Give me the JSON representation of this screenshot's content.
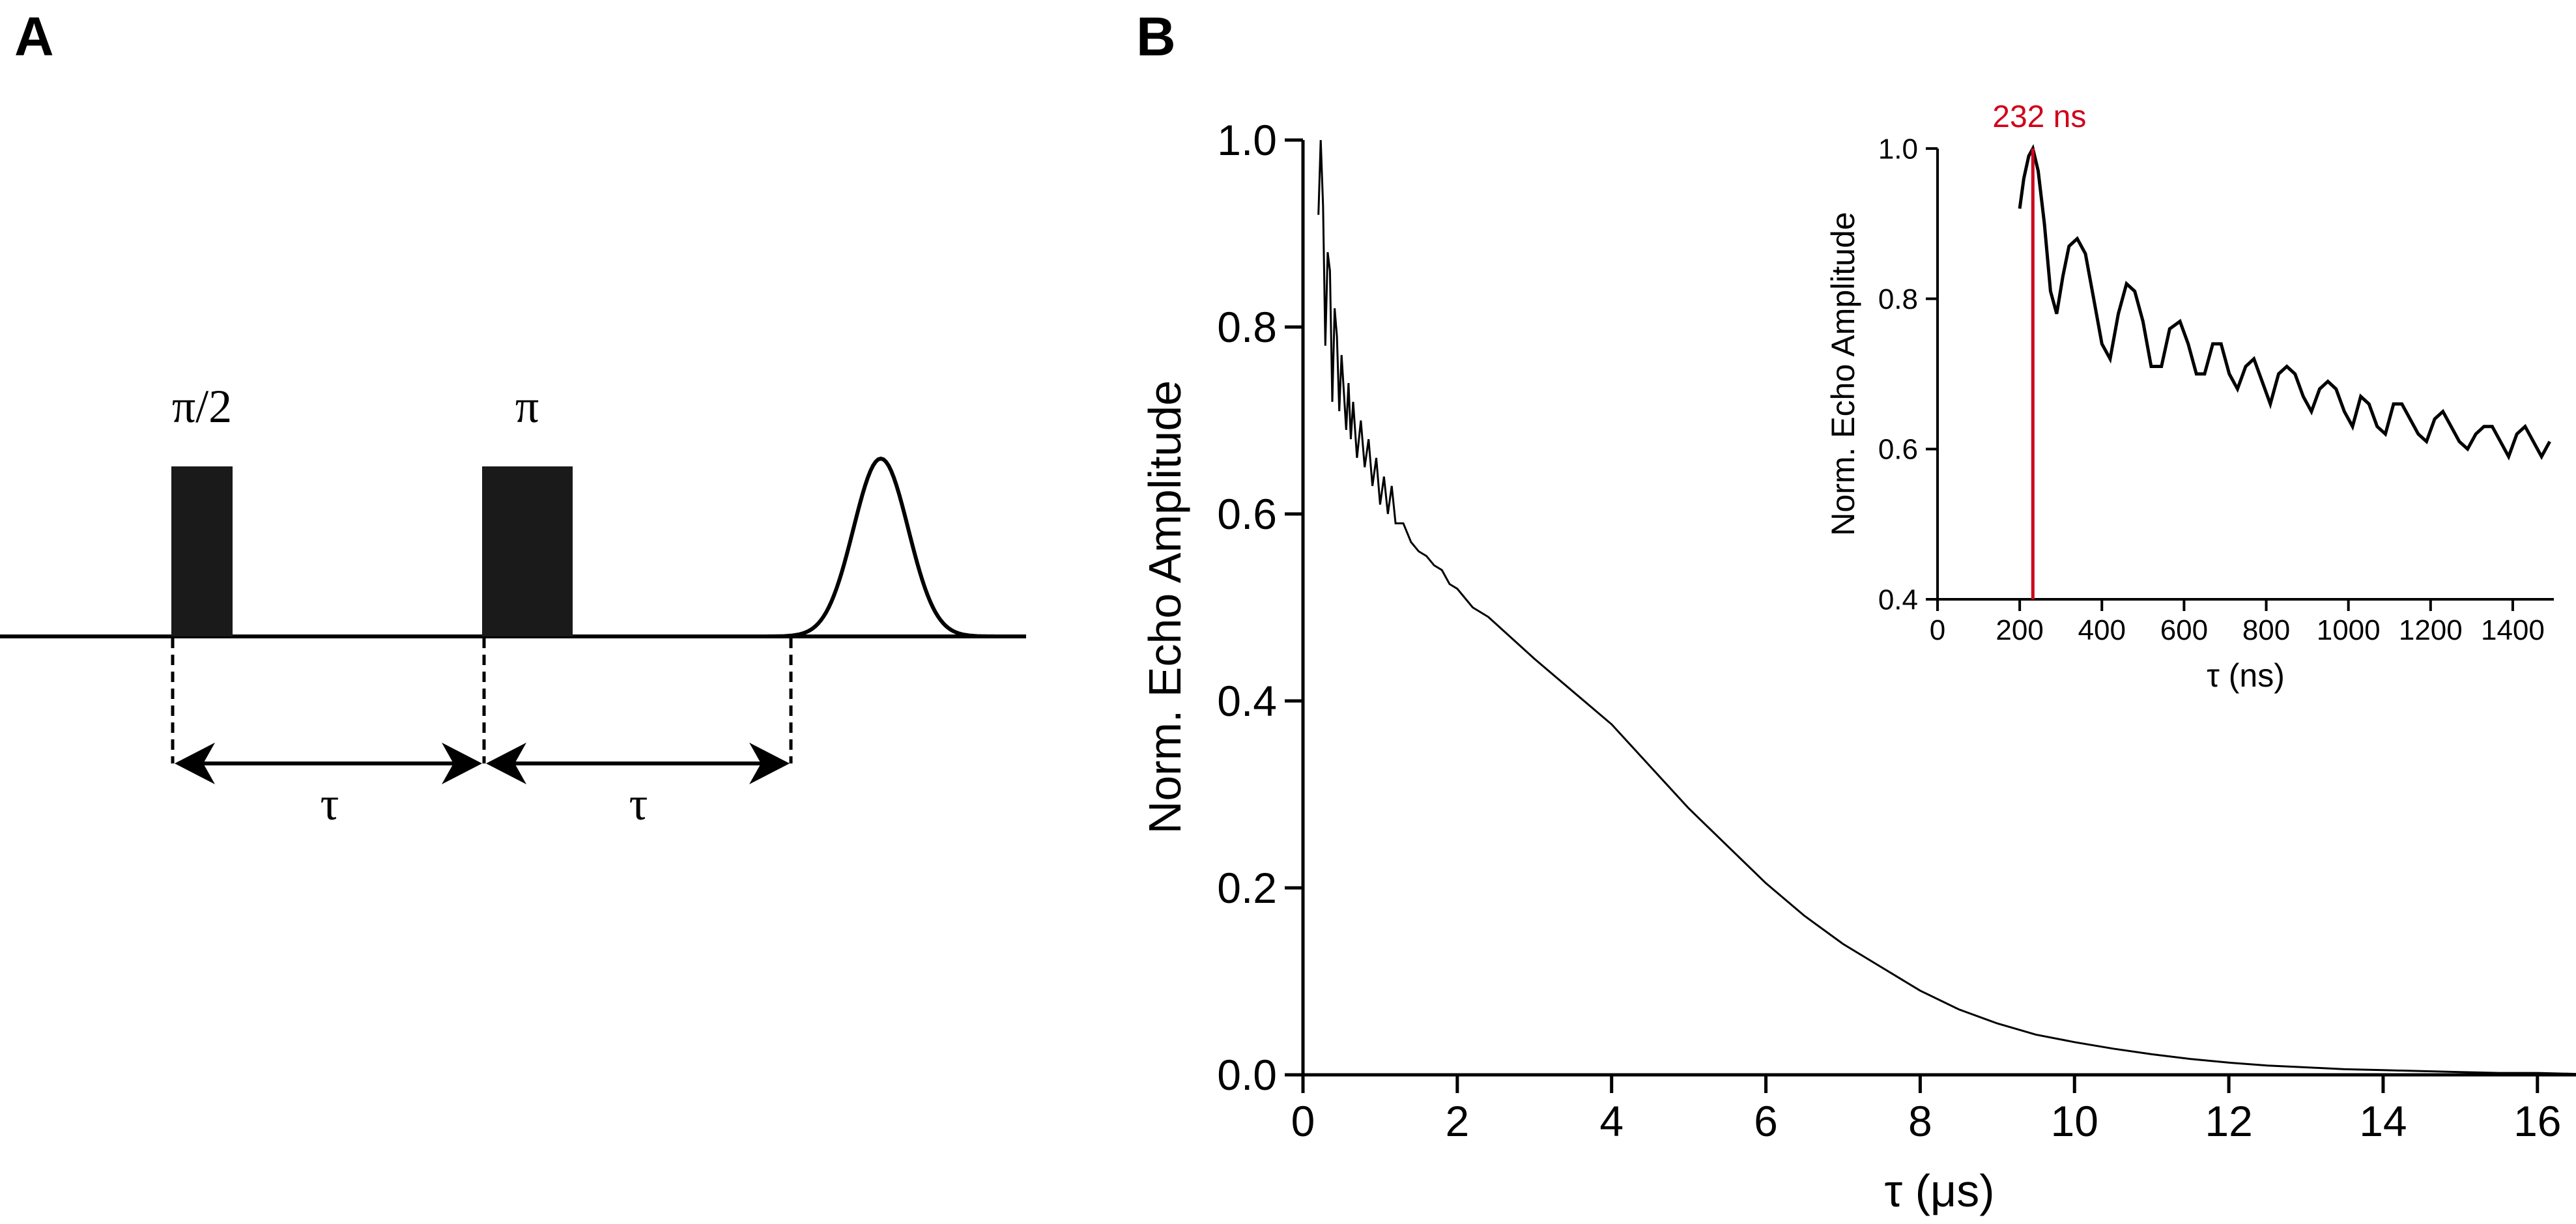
{
  "panel_a": {
    "label": "A",
    "pulse_labels": [
      "π/2",
      "π"
    ],
    "delay_labels": [
      "τ",
      "τ"
    ]
  },
  "panel_b": {
    "label": "B"
  },
  "chart_data": [
    {
      "type": "line",
      "name": "main",
      "title": "",
      "xlabel": "τ (μs)",
      "ylabel": "Norm. Echo Amplitude",
      "xlim": [
        0,
        16.5
      ],
      "ylim": [
        0,
        1.0
      ],
      "xticks": [
        0,
        2,
        4,
        6,
        8,
        10,
        12,
        14,
        16
      ],
      "xtick_labels": [
        "0",
        "2",
        "4",
        "6",
        "8",
        "10",
        "12",
        "14",
        "16"
      ],
      "yticks": [
        0,
        0.2,
        0.4,
        0.6,
        0.8,
        1.0
      ],
      "ytick_labels": [
        "0.0",
        "0.2",
        "0.4",
        "0.6",
        "0.8",
        "1.0"
      ],
      "grid": false,
      "legend": "none",
      "series": [
        {
          "color": "#000000",
          "x": [
            0.2,
            0.23,
            0.26,
            0.29,
            0.32,
            0.35,
            0.38,
            0.41,
            0.44,
            0.47,
            0.5,
            0.53,
            0.56,
            0.59,
            0.62,
            0.65,
            0.7,
            0.75,
            0.8,
            0.85,
            0.9,
            0.95,
            1.0,
            1.05,
            1.1,
            1.15,
            1.2,
            1.3,
            1.4,
            1.5,
            1.6,
            1.7,
            1.8,
            1.9,
            2.0,
            2.2,
            2.4,
            2.6,
            2.8,
            3.0,
            3.5,
            4.0,
            4.5,
            5.0,
            5.5,
            6.0,
            6.5,
            7.0,
            7.5,
            8.0,
            8.5,
            9.0,
            9.5,
            10.0,
            10.5,
            11.0,
            11.5,
            12.0,
            12.5,
            13.0,
            13.5,
            14.0,
            14.5,
            15.0,
            15.5,
            16.0,
            16.5
          ],
          "y": [
            0.92,
            1.0,
            0.93,
            0.78,
            0.88,
            0.86,
            0.72,
            0.82,
            0.79,
            0.71,
            0.77,
            0.73,
            0.69,
            0.74,
            0.68,
            0.72,
            0.66,
            0.7,
            0.65,
            0.68,
            0.63,
            0.66,
            0.61,
            0.64,
            0.6,
            0.63,
            0.59,
            0.59,
            0.57,
            0.56,
            0.555,
            0.545,
            0.54,
            0.525,
            0.52,
            0.5,
            0.49,
            0.475,
            0.46,
            0.445,
            0.41,
            0.375,
            0.33,
            0.285,
            0.245,
            0.205,
            0.17,
            0.14,
            0.115,
            0.09,
            0.07,
            0.055,
            0.043,
            0.035,
            0.028,
            0.022,
            0.017,
            0.013,
            0.01,
            0.008,
            0.006,
            0.005,
            0.004,
            0.003,
            0.002,
            0.002,
            0.001
          ]
        }
      ]
    },
    {
      "type": "line",
      "name": "inset",
      "title": "",
      "xlabel": "τ (ns)",
      "ylabel": "Norm. Echo Amplitude",
      "xlim": [
        0,
        1500
      ],
      "ylim": [
        0.4,
        1.0
      ],
      "xticks": [
        0,
        200,
        400,
        600,
        800,
        1000,
        1200,
        1400
      ],
      "xtick_labels": [
        "0",
        "200",
        "400",
        "600",
        "800",
        "1000",
        "1200",
        "1400"
      ],
      "yticks": [
        0.4,
        0.6,
        0.8,
        1.0
      ],
      "ytick_labels": [
        "0.4",
        "0.6",
        "0.8",
        "1.0"
      ],
      "grid": false,
      "legend": "none",
      "annotation": {
        "x": 232,
        "label": "232 ns",
        "color": "#d0021b"
      },
      "series": [
        {
          "color": "#000000",
          "x": [
            200,
            210,
            222,
            232,
            245,
            260,
            275,
            290,
            305,
            320,
            340,
            360,
            380,
            400,
            420,
            440,
            460,
            480,
            500,
            520,
            545,
            565,
            590,
            610,
            630,
            650,
            670,
            690,
            710,
            730,
            750,
            770,
            790,
            810,
            830,
            850,
            870,
            890,
            910,
            930,
            950,
            970,
            990,
            1010,
            1030,
            1050,
            1070,
            1090,
            1110,
            1130,
            1150,
            1170,
            1190,
            1210,
            1230,
            1250,
            1270,
            1290,
            1310,
            1330,
            1350,
            1370,
            1390,
            1410,
            1430,
            1450,
            1470,
            1490
          ],
          "y": [
            0.92,
            0.96,
            0.99,
            1.0,
            0.97,
            0.9,
            0.81,
            0.78,
            0.83,
            0.87,
            0.88,
            0.86,
            0.8,
            0.74,
            0.72,
            0.78,
            0.82,
            0.81,
            0.77,
            0.71,
            0.71,
            0.76,
            0.77,
            0.74,
            0.7,
            0.7,
            0.74,
            0.74,
            0.7,
            0.68,
            0.71,
            0.72,
            0.69,
            0.66,
            0.7,
            0.71,
            0.7,
            0.67,
            0.65,
            0.68,
            0.69,
            0.68,
            0.65,
            0.63,
            0.67,
            0.66,
            0.63,
            0.62,
            0.66,
            0.66,
            0.64,
            0.62,
            0.61,
            0.64,
            0.65,
            0.63,
            0.61,
            0.6,
            0.62,
            0.63,
            0.63,
            0.61,
            0.59,
            0.62,
            0.63,
            0.61,
            0.59,
            0.61
          ]
        }
      ]
    }
  ]
}
